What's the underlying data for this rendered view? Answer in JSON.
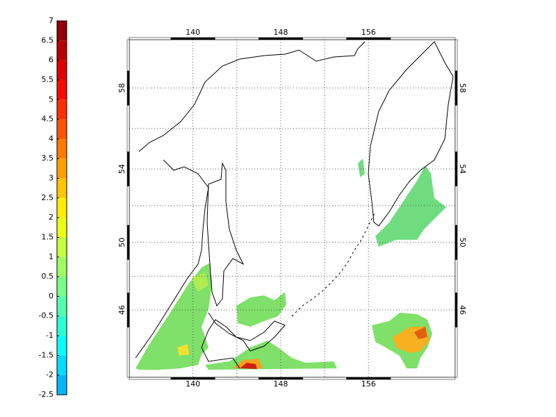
{
  "colorbar": {
    "ticks": [
      7,
      6.5,
      6,
      5.5,
      5,
      4.5,
      4,
      3.5,
      3,
      2.5,
      2,
      1.5,
      1,
      0.5,
      0,
      -0.5,
      -1,
      -1.5,
      -2,
      -2.5
    ],
    "colormap": "jet"
  },
  "map": {
    "projection": "mercator",
    "xlim": [
      134.2,
      163.9
    ],
    "ylim": [
      41.7,
      60.2
    ],
    "xticks": [
      140,
      148,
      156
    ],
    "yticks": [
      46,
      50,
      54,
      58
    ],
    "grid": true
  }
}
